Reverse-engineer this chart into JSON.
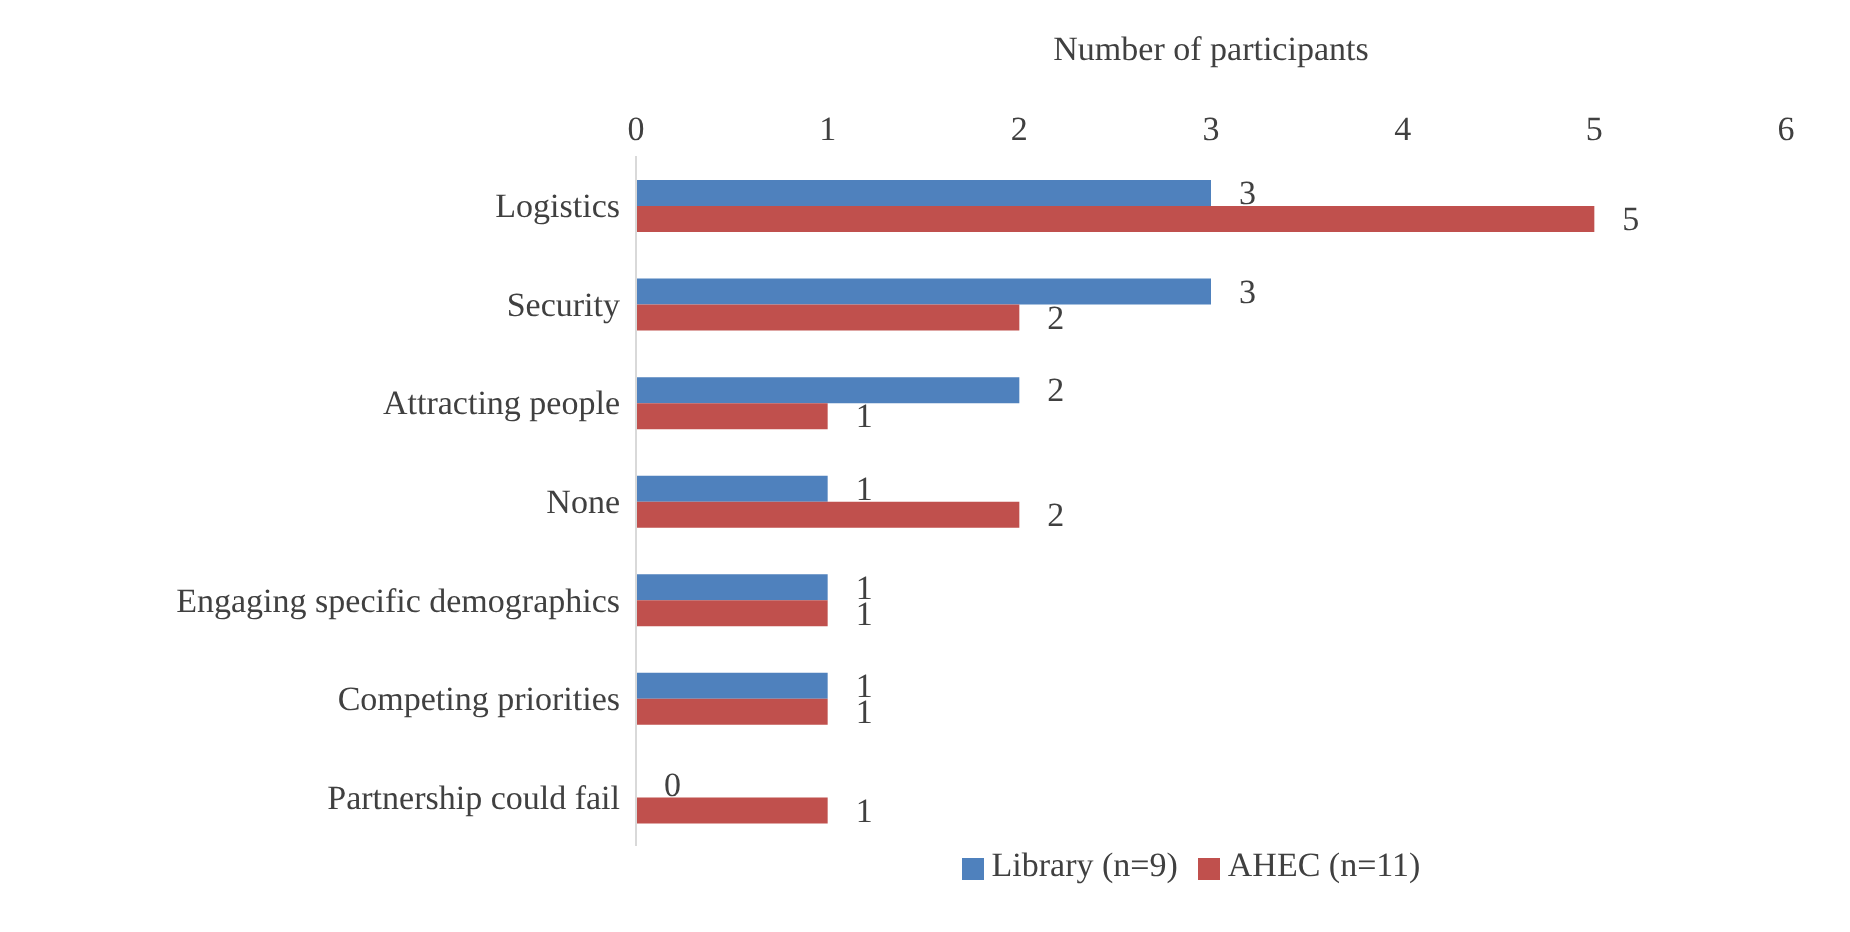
{
  "chart_data": {
    "type": "bar",
    "orientation": "horizontal",
    "xlabel": "Number of participants",
    "categories": [
      "Logistics",
      "Security",
      "Attracting people",
      "None",
      "Engaging specific demographics",
      "Competing priorities",
      "Partnership could fail"
    ],
    "series": [
      {
        "name": "Library (n=9)",
        "color": "#4f81bd",
        "values": [
          3,
          3,
          2,
          1,
          1,
          1,
          0
        ]
      },
      {
        "name": "AHEC (n=11)",
        "color": "#c0504d",
        "values": [
          5,
          2,
          1,
          2,
          1,
          1,
          1
        ]
      }
    ],
    "xlim": [
      0,
      6
    ],
    "xticks": [
      0,
      1,
      2,
      3,
      4,
      5,
      6
    ],
    "grid": false,
    "legend": "bottom",
    "data_labels": true
  }
}
